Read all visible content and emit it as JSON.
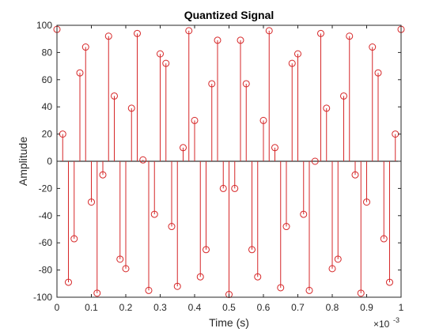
{
  "chart_data": {
    "type": "stem",
    "title": "Quantized Signal",
    "xlabel": "Time (s)",
    "ylabel": "Amplitude",
    "x_exponent": {
      "base": "×10",
      "power": "-3"
    },
    "xlim": [
      0,
      1
    ],
    "ylim": [
      -100,
      100
    ],
    "x_tick_labels": [
      "0",
      "0.1",
      "0.2",
      "0.3",
      "0.4",
      "0.5",
      "0.6",
      "0.7",
      "0.8",
      "0.9",
      "1"
    ],
    "y_tick_labels": [
      "100",
      "80",
      "60",
      "40",
      "20",
      "0",
      "-20",
      "-40",
      "-60",
      "-80",
      "-100"
    ],
    "x_ticks": [
      0,
      0.1,
      0.2,
      0.3,
      0.4,
      0.5,
      0.6,
      0.7,
      0.8,
      0.9,
      1
    ],
    "y_ticks": [
      100,
      80,
      60,
      40,
      20,
      0,
      -20,
      -40,
      -60,
      -80,
      -100
    ],
    "grid": false,
    "color": "#d62728",
    "x": [
      0,
      0.01667,
      0.03333,
      0.05,
      0.06667,
      0.08333,
      0.1,
      0.11667,
      0.13333,
      0.15,
      0.16667,
      0.18333,
      0.2,
      0.21667,
      0.23333,
      0.25,
      0.26667,
      0.28333,
      0.3,
      0.31667,
      0.33333,
      0.35,
      0.36667,
      0.38333,
      0.4,
      0.41667,
      0.43333,
      0.45,
      0.46667,
      0.48333,
      0.5,
      0.51667,
      0.53333,
      0.55,
      0.56667,
      0.58333,
      0.6,
      0.61667,
      0.63333,
      0.65,
      0.66667,
      0.68333,
      0.7,
      0.71667,
      0.73333,
      0.75,
      0.76667,
      0.78333,
      0.8,
      0.81667,
      0.83333,
      0.85,
      0.86667,
      0.88333,
      0.9,
      0.91667,
      0.93333,
      0.95,
      0.96667,
      0.98333,
      1
    ],
    "y": [
      97,
      20,
      -89,
      -57,
      65,
      84,
      -30,
      -97,
      -10,
      92,
      48,
      -72,
      -79,
      39,
      94,
      1,
      -95,
      -39,
      79,
      72,
      -48,
      -92,
      10,
      96,
      30,
      -85,
      -65,
      57,
      89,
      -20,
      -98,
      -20,
      89,
      57,
      -65,
      -85,
      30,
      96,
      10,
      -93,
      -48,
      72,
      79,
      -39,
      -95,
      0,
      94,
      39,
      -79,
      -72,
      48,
      92,
      -10,
      -97,
      -30,
      84,
      65,
      -57,
      -89,
      20,
      97
    ]
  }
}
